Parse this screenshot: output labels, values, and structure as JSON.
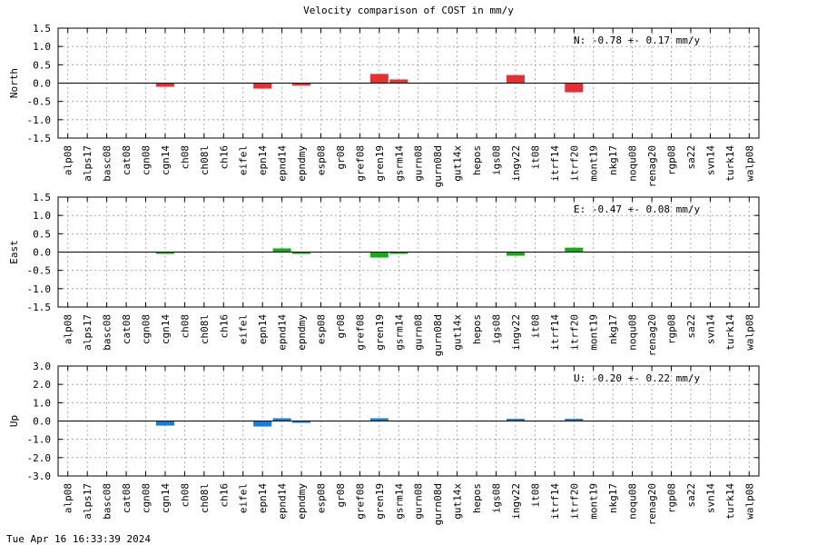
{
  "title": "Velocity comparison of COST in mm/y",
  "timestamp": "Tue Apr 16 16:33:39 2024",
  "chart_data": {
    "type": "bar",
    "categories": [
      "alp08",
      "alps17",
      "basc08",
      "cat08",
      "cgn08",
      "cgn14",
      "ch08",
      "ch08l",
      "ch16",
      "eifel",
      "epn14",
      "epnd14",
      "epndmy",
      "esp08",
      "gr08",
      "gref08",
      "gren19",
      "gsrm14",
      "gurn08",
      "gurn08d",
      "gut14x",
      "hepos",
      "igs08",
      "ingv22",
      "it08",
      "itrf14",
      "itrf20",
      "mont19",
      "nkg17",
      "noqu08",
      "renag20",
      "rgp08",
      "sa22",
      "svn14",
      "turk14",
      "walp08"
    ],
    "panels": [
      {
        "ylabel": "North",
        "ylim": [
          -1.5,
          1.5
        ],
        "yticks": [
          "1.5",
          "1.0",
          "0.5",
          "0.0",
          "-0.5",
          "-1.0",
          "-1.5"
        ],
        "ytick_values": [
          1.5,
          1.0,
          0.5,
          0.0,
          -0.5,
          -1.0,
          -1.5
        ],
        "color": "#e83030",
        "annotation": "N:  -0.78 +-  0.17 mm/y",
        "values": [
          null,
          null,
          null,
          null,
          null,
          -0.1,
          null,
          null,
          null,
          null,
          -0.15,
          null,
          -0.07,
          null,
          null,
          null,
          0.25,
          0.1,
          null,
          null,
          null,
          null,
          null,
          0.22,
          null,
          null,
          -0.25,
          null,
          null,
          null,
          null,
          null,
          null,
          null,
          null,
          null
        ]
      },
      {
        "ylabel": "East",
        "ylim": [
          -1.5,
          1.5
        ],
        "yticks": [
          "1.5",
          "1.0",
          "0.5",
          "0.0",
          "-0.5",
          "-1.0",
          "-1.5"
        ],
        "ytick_values": [
          1.5,
          1.0,
          0.5,
          0.0,
          -0.5,
          -1.0,
          -1.5
        ],
        "color": "#10b010",
        "annotation": "E:  -0.47 +-  0.08 mm/y",
        "values": [
          null,
          null,
          null,
          null,
          null,
          -0.03,
          null,
          null,
          null,
          null,
          null,
          0.1,
          -0.05,
          null,
          null,
          null,
          -0.15,
          -0.05,
          null,
          null,
          null,
          null,
          null,
          -0.1,
          null,
          null,
          0.12,
          null,
          null,
          null,
          null,
          null,
          null,
          null,
          null,
          null
        ]
      },
      {
        "ylabel": "Up",
        "ylim": [
          -3.0,
          3.0
        ],
        "yticks": [
          "3.0",
          "2.0",
          "1.0",
          "0.0",
          "-1.0",
          "-2.0",
          "-3.0"
        ],
        "ytick_values": [
          3.0,
          2.0,
          1.0,
          0.0,
          -1.0,
          -2.0,
          -3.0
        ],
        "color": "#1080e0",
        "annotation": "U:  -0.20 +-  0.22 mm/y",
        "values": [
          null,
          null,
          null,
          null,
          null,
          -0.25,
          null,
          null,
          null,
          null,
          -0.3,
          0.15,
          -0.1,
          null,
          null,
          null,
          0.15,
          null,
          null,
          null,
          null,
          null,
          null,
          0.12,
          null,
          null,
          0.12,
          null,
          null,
          null,
          null,
          null,
          null,
          null,
          null,
          null
        ]
      }
    ],
    "grid": true
  }
}
